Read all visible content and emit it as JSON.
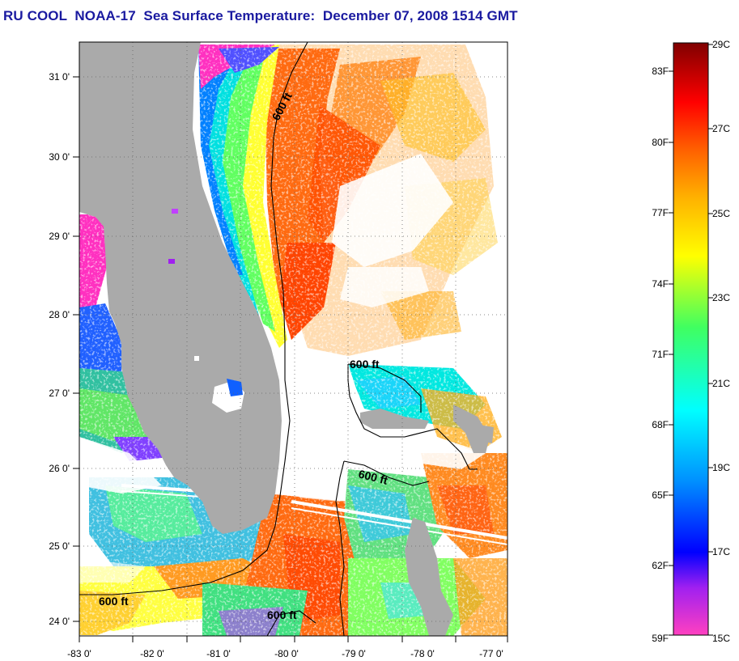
{
  "title": "RU COOL  NOAA-17  Sea Surface Temperature:  December 07, 2008 1514 GMT",
  "map": {
    "lon_range": [
      -83,
      -77
    ],
    "lat_range": [
      23.8,
      31.5
    ],
    "x_ticks": [
      "-83 0'",
      "-82 0'",
      "-81 0'",
      "-80 0'",
      "-79 0'",
      "-78 0'",
      "-77 0'"
    ],
    "y_ticks": [
      "31 0'",
      "30 0'",
      "29 0'",
      "28 0'",
      "27 0'",
      "26 0'",
      "25 0'",
      "24 0'"
    ],
    "contour_labels": [
      "600 ft",
      "600 ft",
      "600 ft",
      "600 ft",
      "600 ft"
    ],
    "colors": {
      "land": "#aaaaaa",
      "no_data": "#ffffff",
      "contour": "#000000"
    }
  },
  "colorbar": {
    "fahrenheit_labels": [
      "83F",
      "80F",
      "77F",
      "74F",
      "71F",
      "68F",
      "65F",
      "62F",
      "59F"
    ],
    "celsius_labels": [
      "29C",
      "27C",
      "25C",
      "23C",
      "21C",
      "19C",
      "17C",
      "15C"
    ],
    "range_c": [
      15,
      29
    ],
    "stops": [
      "#ff40c0",
      "#a020f0",
      "#0000ff",
      "#00a0ff",
      "#00ffff",
      "#40ff80",
      "#ffff00",
      "#ffa000",
      "#ff5000",
      "#ff0000",
      "#800000"
    ]
  }
}
